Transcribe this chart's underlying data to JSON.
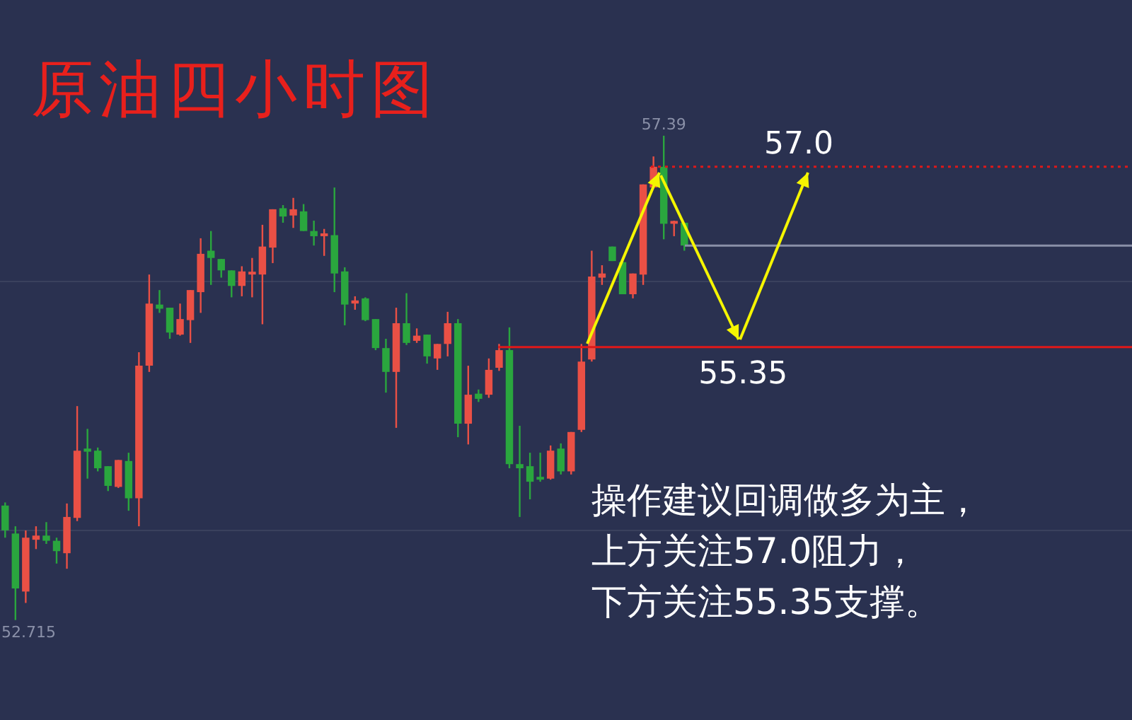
{
  "chart_data": {
    "type": "candlestick",
    "title": "原油四小时图",
    "categories": [
      null,
      null,
      null,
      null,
      null,
      null,
      null,
      null,
      null,
      null,
      null,
      null,
      null,
      null,
      null,
      null,
      null,
      null,
      null,
      null,
      null,
      null,
      null,
      null,
      null,
      null,
      null,
      null,
      null,
      null,
      null,
      null,
      null,
      null,
      null,
      null,
      null,
      null,
      null,
      null,
      null,
      null,
      null,
      null,
      null,
      null,
      null,
      null,
      null,
      null,
      null,
      null,
      null,
      null,
      null,
      null,
      null,
      null,
      null,
      null,
      null,
      null,
      null,
      null,
      null,
      null,
      null,
      null,
      null,
      null,
      null,
      null,
      null,
      null,
      null,
      null,
      null,
      null,
      null,
      null,
      null,
      null,
      null,
      null,
      null,
      null,
      null,
      null,
      null,
      null,
      null,
      null,
      null,
      null,
      null,
      null,
      null,
      null,
      null,
      null,
      null,
      null,
      null,
      null,
      null,
      null,
      null,
      null,
      null,
      null
    ],
    "ohlc": [
      [
        53.82,
        53.85,
        53.51,
        53.58
      ],
      [
        53.55,
        53.62,
        52.715,
        53.02
      ],
      [
        52.99,
        53.58,
        52.88,
        53.51
      ],
      [
        53.49,
        53.62,
        53.4,
        53.53
      ],
      [
        53.53,
        53.66,
        53.45,
        53.48
      ],
      [
        53.48,
        53.51,
        53.26,
        53.38
      ],
      [
        53.36,
        53.84,
        53.21,
        53.71
      ],
      [
        53.7,
        54.78,
        53.67,
        54.35
      ],
      [
        54.37,
        54.56,
        54.08,
        54.34
      ],
      [
        54.35,
        54.38,
        54.15,
        54.18
      ],
      [
        54.2,
        54.2,
        53.96,
        54.01
      ],
      [
        54.0,
        54.26,
        53.99,
        54.26
      ],
      [
        54.25,
        54.33,
        53.77,
        53.89
      ],
      [
        53.89,
        55.3,
        53.62,
        55.17
      ],
      [
        55.17,
        56.05,
        55.11,
        55.77
      ],
      [
        55.76,
        55.9,
        55.68,
        55.72
      ],
      [
        55.73,
        55.73,
        55.43,
        55.49
      ],
      [
        55.47,
        55.77,
        55.46,
        55.62
      ],
      [
        55.61,
        55.9,
        55.39,
        55.9
      ],
      [
        55.88,
        56.4,
        55.68,
        56.25
      ],
      [
        56.28,
        56.47,
        55.95,
        56.21
      ],
      [
        56.2,
        56.2,
        56.02,
        56.09
      ],
      [
        56.09,
        56.09,
        55.83,
        55.94
      ],
      [
        55.94,
        56.13,
        55.84,
        56.08
      ],
      [
        56.05,
        56.21,
        55.83,
        56.06
      ],
      [
        56.05,
        56.53,
        55.57,
        56.32
      ],
      [
        56.31,
        56.68,
        56.16,
        56.68
      ],
      [
        56.69,
        56.72,
        56.55,
        56.61
      ],
      [
        56.62,
        56.79,
        56.5,
        56.68
      ],
      [
        56.66,
        56.73,
        56.47,
        56.47
      ],
      [
        56.47,
        56.57,
        56.33,
        56.42
      ],
      [
        56.42,
        56.49,
        56.23,
        56.43
      ],
      [
        56.43,
        56.89,
        55.88,
        56.06
      ],
      [
        56.08,
        56.12,
        55.56,
        55.76
      ],
      [
        55.77,
        55.84,
        55.71,
        55.8
      ],
      [
        55.82,
        55.83,
        55.6,
        55.61
      ],
      [
        55.62,
        55.62,
        55.32,
        55.34
      ],
      [
        55.34,
        55.43,
        54.91,
        55.11
      ],
      [
        55.11,
        55.73,
        54.57,
        55.58
      ],
      [
        55.58,
        55.87,
        55.37,
        55.39
      ],
      [
        55.41,
        55.53,
        55.39,
        55.46
      ],
      [
        55.47,
        55.47,
        55.19,
        55.26
      ],
      [
        55.24,
        55.38,
        55.13,
        55.38
      ],
      [
        55.38,
        55.69,
        55.26,
        55.58
      ],
      [
        55.58,
        55.62,
        54.48,
        54.61
      ],
      [
        54.61,
        55.17,
        54.41,
        54.89
      ],
      [
        54.9,
        54.94,
        54.82,
        54.85
      ],
      [
        54.89,
        55.24,
        54.86,
        55.13
      ],
      [
        55.15,
        55.38,
        55.12,
        55.32
      ],
      [
        55.32,
        55.54,
        54.18,
        54.22
      ],
      [
        54.22,
        54.59,
        53.71,
        54.18
      ],
      [
        54.2,
        54.33,
        53.88,
        54.05
      ],
      [
        54.08,
        54.33,
        54.05,
        54.07
      ],
      [
        54.08,
        54.4,
        54.07,
        54.35
      ],
      [
        54.37,
        54.42,
        54.12,
        54.15
      ],
      [
        54.15,
        54.53,
        54.12,
        54.53
      ],
      [
        54.55,
        55.38,
        54.53,
        55.21
      ],
      [
        55.23,
        56.28,
        55.21,
        56.03
      ],
      [
        56.02,
        56.14,
        55.95,
        56.06
      ],
      [
        56.32,
        56.32,
        56.18,
        56.18
      ],
      [
        56.17,
        56.17,
        55.86,
        55.86
      ],
      [
        55.86,
        56.06,
        55.82,
        56.06
      ],
      [
        56.05,
        56.92,
        55.95,
        56.92
      ],
      [
        56.89,
        57.19,
        56.89,
        57.09
      ],
      [
        57.09,
        57.39,
        56.39,
        56.54
      ],
      [
        56.54,
        56.57,
        56.42,
        56.55
      ],
      [
        56.55,
        56.55,
        56.28,
        56.33
      ],
      null,
      null,
      null,
      null,
      null,
      null,
      null,
      null,
      null,
      null,
      null,
      null,
      null,
      null,
      null,
      null,
      null,
      null,
      null,
      null,
      null,
      null,
      null,
      null,
      null,
      null,
      null,
      null,
      null,
      null,
      null,
      null,
      null,
      null,
      null,
      null,
      null,
      null,
      null,
      null,
      null,
      null,
      null
    ],
    "colors": [
      "#2aa63e",
      "#2aa63e",
      "#ea5045",
      "#ea5045",
      "#2aa63e",
      "#2aa63e",
      "#ea5045",
      "#ea5045",
      "#2aa63e",
      "#2aa63e",
      "#2aa63e",
      "#ea5045",
      "#2aa63e",
      "#ea5045",
      "#ea5045",
      "#2aa63e",
      "#2aa63e",
      "#ea5045",
      "#ea5045",
      "#ea5045",
      "#2aa63e",
      "#2aa63e",
      "#2aa63e",
      "#ea5045",
      "#ea5045",
      "#ea5045",
      "#ea5045",
      "#2aa63e",
      "#ea5045",
      "#2aa63e",
      "#2aa63e",
      "#ea5045",
      "#2aa63e",
      "#2aa63e",
      "#ea5045",
      "#2aa63e",
      "#2aa63e",
      "#2aa63e",
      "#ea5045",
      "#2aa63e",
      "#ea5045",
      "#2aa63e",
      "#ea5045",
      "#ea5045",
      "#2aa63e",
      "#ea5045",
      "#2aa63e",
      "#ea5045",
      "#ea5045",
      "#2aa63e",
      "#2aa63e",
      "#2aa63e",
      "#2aa63e",
      "#ea5045",
      "#2aa63e",
      "#ea5045",
      "#ea5045",
      "#ea5045",
      "#ea5045",
      "#2aa63e",
      "#2aa63e",
      "#ea5045",
      "#ea5045",
      "#ea5045",
      "#2aa63e",
      "#ea5045",
      "#2aa63e",
      null,
      null,
      null,
      null,
      null,
      null,
      null,
      null,
      null,
      null,
      null,
      null,
      null,
      null,
      null,
      null,
      null,
      null,
      null,
      null,
      null,
      null,
      null,
      null,
      null,
      null,
      null,
      null,
      null,
      null,
      null,
      null,
      null,
      null,
      null,
      null,
      null,
      null,
      null,
      null,
      null,
      null,
      null
    ],
    "ylim": [
      51.75,
      58.7
    ],
    "yticks": [
      {
        "value": 53.58,
        "label": null
      },
      {
        "value": 55.98,
        "label": null
      }
    ],
    "grid": "y",
    "ref_lines": [
      {
        "axis": "y",
        "value": 55.35,
        "label": "55.35",
        "color": "#e01818",
        "line_style": "solid"
      },
      {
        "axis": "y",
        "value": 57.09,
        "label": null,
        "color": "#e01818",
        "line_style": "dotted"
      },
      {
        "axis": "y",
        "value": 56.33,
        "label": null,
        "color": "#8a90a8",
        "line_style": "solid"
      }
    ],
    "annotations": [
      {
        "text": "57.39",
        "y": 57.39
      },
      "52.715",
      "57.0",
      "操作建议回调做多为主，",
      "上方关注57.0阻力，",
      "下方关注55.35支撑。"
    ]
  }
}
